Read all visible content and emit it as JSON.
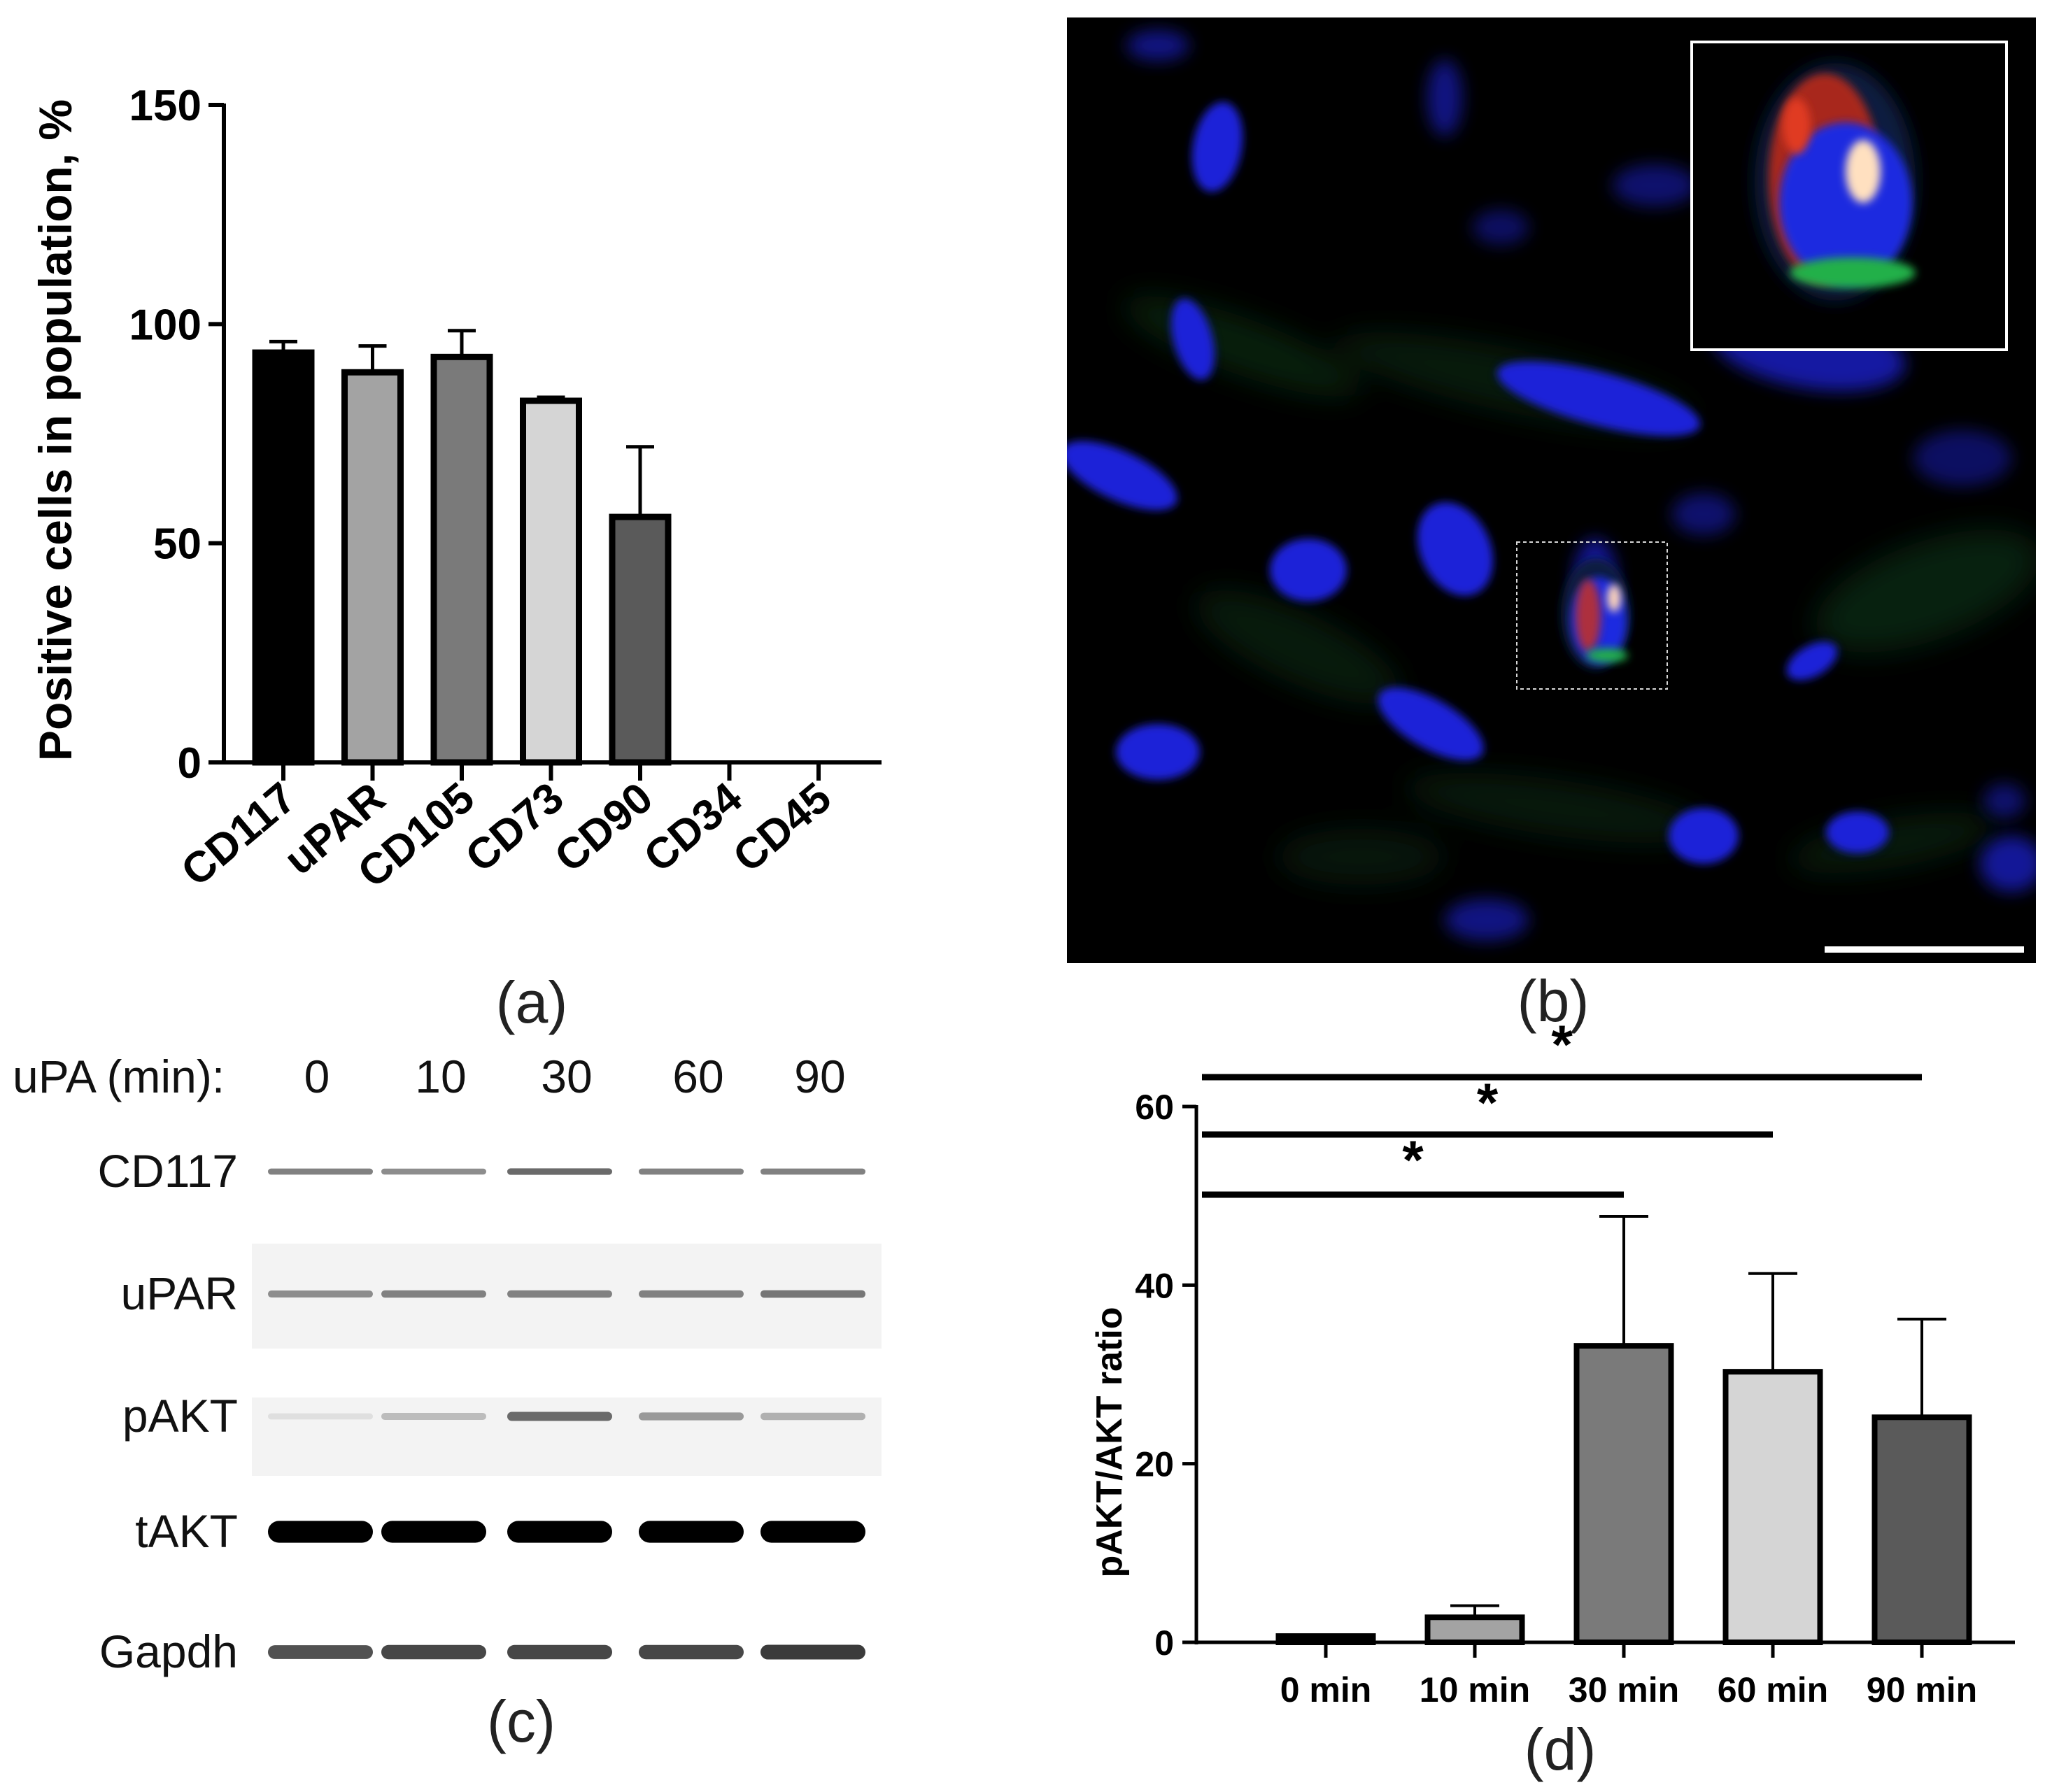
{
  "panel_a": {
    "label": "(a)",
    "chart_data": {
      "type": "bar",
      "categories": [
        "CD117",
        "uPAR",
        "CD105",
        "CD73",
        "CD90",
        "CD34",
        "CD45"
      ],
      "values": [
        93.5,
        89,
        92.5,
        82.5,
        56,
        0,
        0
      ],
      "error": [
        2.5,
        6,
        6,
        0.8,
        16,
        0,
        0
      ],
      "bar_colors": [
        "#000000",
        "#a3a3a3",
        "#7a7a7a",
        "#d5d5d5",
        "#5a5a5a",
        "#000000",
        "#000000"
      ],
      "ylabel": "Positive cells in population, %",
      "ylim": [
        0,
        150
      ],
      "yticks": [
        0,
        50,
        100,
        150
      ],
      "grid": false
    }
  },
  "panel_b": {
    "label": "(b)",
    "colors": {
      "nuclei": "#1a24d8",
      "green": "#21a04a",
      "red": "#e0301e",
      "background": "#000000"
    }
  },
  "panel_c": {
    "label": "(c)",
    "header": "uPA (min):",
    "times": [
      "0",
      "10",
      "30",
      "60",
      "90"
    ],
    "rows": [
      {
        "name": "CD117",
        "intensity": [
          0.45,
          0.4,
          0.55,
          0.45,
          0.45
        ]
      },
      {
        "name": "uPAR",
        "intensity": [
          0.4,
          0.45,
          0.45,
          0.45,
          0.5
        ]
      },
      {
        "name": "pAKT",
        "intensity": [
          0.05,
          0.2,
          0.55,
          0.35,
          0.25
        ]
      },
      {
        "name": "tAKT",
        "intensity": [
          1,
          1,
          1,
          1,
          1
        ]
      },
      {
        "name": "Gapdh",
        "intensity": [
          0.65,
          0.7,
          0.7,
          0.7,
          0.75
        ]
      }
    ]
  },
  "panel_d": {
    "label": "(d)",
    "chart_data": {
      "type": "bar",
      "categories": [
        "0 min",
        "10 min",
        "30 min",
        "60 min",
        "90 min"
      ],
      "values": [
        0.7,
        2.8,
        33.2,
        30.3,
        25.2
      ],
      "error": [
        0,
        1.3,
        14.5,
        11,
        11
      ],
      "bar_colors": [
        "#000000",
        "#a3a3a3",
        "#7a7a7a",
        "#d5d5d5",
        "#5a5a5a"
      ],
      "ylabel": "pAKT/AKT ratio",
      "ylim": [
        0,
        60
      ],
      "yticks": [
        0,
        20,
        40,
        60
      ],
      "grid": false,
      "significance": [
        {
          "from": "0 min",
          "to": "30 min",
          "label": "*"
        },
        {
          "from": "0 min",
          "to": "60 min",
          "label": "*"
        },
        {
          "from": "0 min",
          "to": "90 min",
          "label": "*"
        }
      ]
    }
  }
}
